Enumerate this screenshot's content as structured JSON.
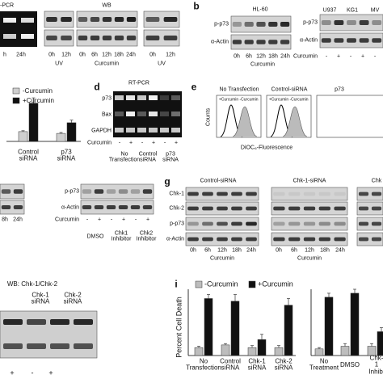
{
  "a": {
    "rtpcr": "-PCR",
    "uv_times_1": [
      "h",
      "24h"
    ],
    "uv_times_2": [
      "0h",
      "12h"
    ],
    "uv_2": "UV",
    "wb": "WB",
    "wb_times": [
      "0h",
      "6h",
      "12h",
      "18h",
      "24h"
    ],
    "wb_treatment": "Curcumin",
    "uv_times_3": [
      "0h",
      "12h"
    ],
    "uv_3": "UV"
  },
  "b": {
    "label": "b",
    "cell_line": "HL-60",
    "rows": [
      "p-p73",
      "α-Actin"
    ],
    "times": [
      "0h",
      "6h",
      "12h",
      "18h",
      "24h"
    ],
    "treatment": "Curcumin",
    "cell_lines": [
      "U937",
      "KG1",
      "MV"
    ],
    "rows_2": [
      "p-p73",
      "α-Actin"
    ],
    "treatment_2": "Curcumin",
    "signs": [
      "-",
      "+",
      "-",
      "+",
      "-"
    ]
  },
  "c": {
    "chart_data": {
      "type": "bar",
      "categories": [
        "Control\nsiRNA",
        "p73\nsiRNA"
      ],
      "ylim": [
        0,
        50
      ],
      "series": [
        {
          "name": "-Curcumin",
          "color": "#cfcfcf",
          "values": [
            11,
            9
          ],
          "errors": [
            1,
            1
          ]
        },
        {
          "name": "+Curcumin",
          "color": "#111111",
          "values": [
            43,
            21
          ],
          "errors": [
            6,
            3
          ]
        }
      ]
    }
  },
  "d": {
    "label": "d",
    "title": "RT-PCR",
    "rows": [
      "p73",
      "Bax",
      "GAPDH"
    ],
    "treatment": "Curcumin",
    "signs": [
      "-",
      "+",
      "-",
      "+",
      "-",
      "+"
    ],
    "groups": [
      "No\nTransfection",
      "Control\nsiRNA",
      "p73\nsiRNA"
    ]
  },
  "e": {
    "label": "e",
    "conditions": [
      "No Transfection",
      "Control-siRNA",
      "p73"
    ],
    "annotations": [
      "+Curcumin",
      "-Curcumin"
    ],
    "y_label": "Counts",
    "x_label": "DiOC₆-Fluorescence"
  },
  "f": {
    "rows": [
      "p-p73",
      "α-Actin"
    ],
    "times": [
      "8h",
      "24h"
    ],
    "treatment": "Curcumin",
    "signs": [
      "-",
      "+",
      "-",
      "+",
      "-",
      "+"
    ],
    "groups": [
      "DMSO",
      "Chk1\nInhibitor",
      "Chk2\nInhibitor"
    ]
  },
  "g": {
    "label": "g",
    "conditions": [
      "Control-siRNA",
      "Chk-1-siRNA",
      "Chk"
    ],
    "rows": [
      "Chk-1",
      "Chk-2",
      "p-p73",
      "α-Actin"
    ],
    "times": [
      "0h",
      "6h",
      "12h",
      "18h",
      "24h"
    ],
    "treatment": "Curcumin",
    "times_2": [
      "0h",
      "6h",
      "12h",
      "18h",
      "24h"
    ],
    "treatment_2": "Curcumin"
  },
  "h": {
    "title": "WB: Chk-1/Chk-2",
    "groups": [
      "Chk-1\nsiRNA",
      "Chk-2\nsiRNA"
    ],
    "signs": [
      "+",
      "-",
      "+"
    ]
  },
  "i": {
    "label": "i",
    "y_label": "Percent Cell Death",
    "charts": [
      {
        "type": "bar",
        "categories": [
          "No\nTransfection",
          "Control\nsiRNA",
          "Chk-1\nsiRNA",
          "Chk-2\nsiRNA"
        ],
        "ylim": [
          0,
          50
        ],
        "series": [
          {
            "name": "-Curcumin",
            "color": "#bdbdbd",
            "values": [
              6,
              8,
              6,
              6
            ],
            "errors": [
              1,
              1,
              1.5,
              1.5
            ]
          },
          {
            "name": "+Curcumin",
            "color": "#111111",
            "values": [
              43,
              41,
              12,
              38
            ],
            "errors": [
              3,
              5,
              4,
              5
            ]
          }
        ]
      },
      {
        "type": "bar",
        "categories": [
          "No\nTreatment",
          "DMSO",
          "Chk-1\nInhibi"
        ],
        "ylim": [
          0,
          50
        ],
        "series": [
          {
            "name": "-Curcumin",
            "color": "#bdbdbd",
            "values": [
              5,
              7,
              7
            ],
            "errors": [
              1,
              2,
              2
            ]
          },
          {
            "name": "+Curcumin",
            "color": "#111111",
            "values": [
              44,
              47,
              18
            ],
            "errors": [
              3,
              3,
              3
            ]
          }
        ]
      }
    ]
  }
}
